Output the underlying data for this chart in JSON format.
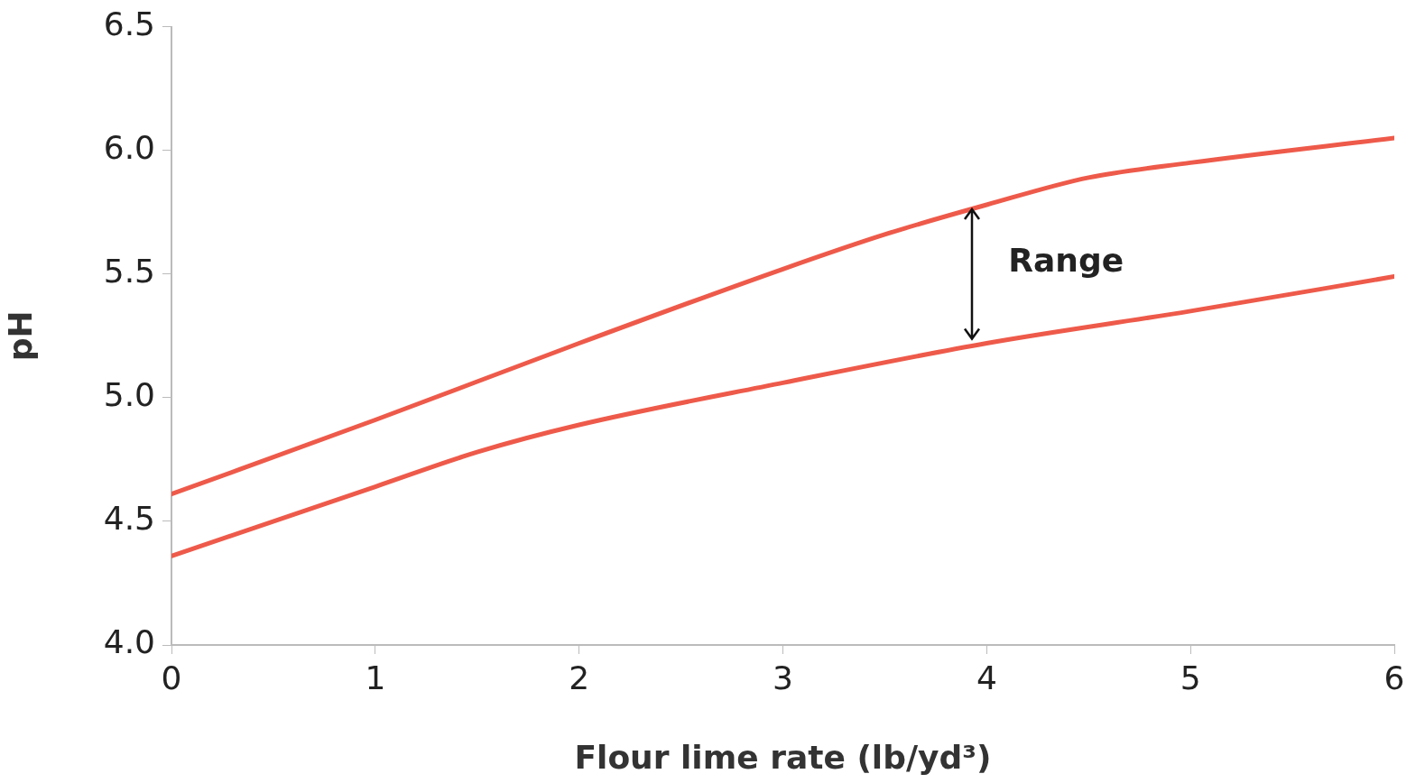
{
  "chart_data": {
    "type": "line",
    "xlabel": "Flour lime rate (lb/yd³)",
    "ylabel": "pH",
    "xlim": [
      0,
      6
    ],
    "xticks": [
      0,
      1,
      2,
      3,
      4,
      5,
      6
    ],
    "ylim": [
      4,
      6.5
    ],
    "yticks": [
      {
        "value": 4,
        "label": "4.0"
      },
      {
        "value": 4.5,
        "label": "4.5"
      },
      {
        "value": 5,
        "label": "5.0"
      },
      {
        "value": 5.5,
        "label": "5.5"
      },
      {
        "value": 6,
        "label": "6.0"
      },
      {
        "value": 6.5,
        "label": "6.5"
      }
    ],
    "grid": false,
    "legend": false,
    "marker": "none",
    "line_style": "solid",
    "x": [
      0,
      1,
      2,
      3,
      3.5,
      4,
      4.5,
      5,
      6
    ],
    "series": [
      {
        "color": "#ee5a4a",
        "values": [
          4.61,
          4.91,
          5.22,
          5.52,
          5.66,
          5.78,
          5.89,
          5.95,
          6.05
        ]
      },
      {
        "color": "#ee5a4a",
        "x": [
          0,
          1,
          1.5,
          2,
          3,
          4,
          5,
          6
        ],
        "values": [
          4.36,
          4.64,
          4.78,
          4.89,
          5.06,
          5.22,
          5.35,
          5.49
        ]
      }
    ],
    "annotations": [
      "Range"
    ]
  }
}
